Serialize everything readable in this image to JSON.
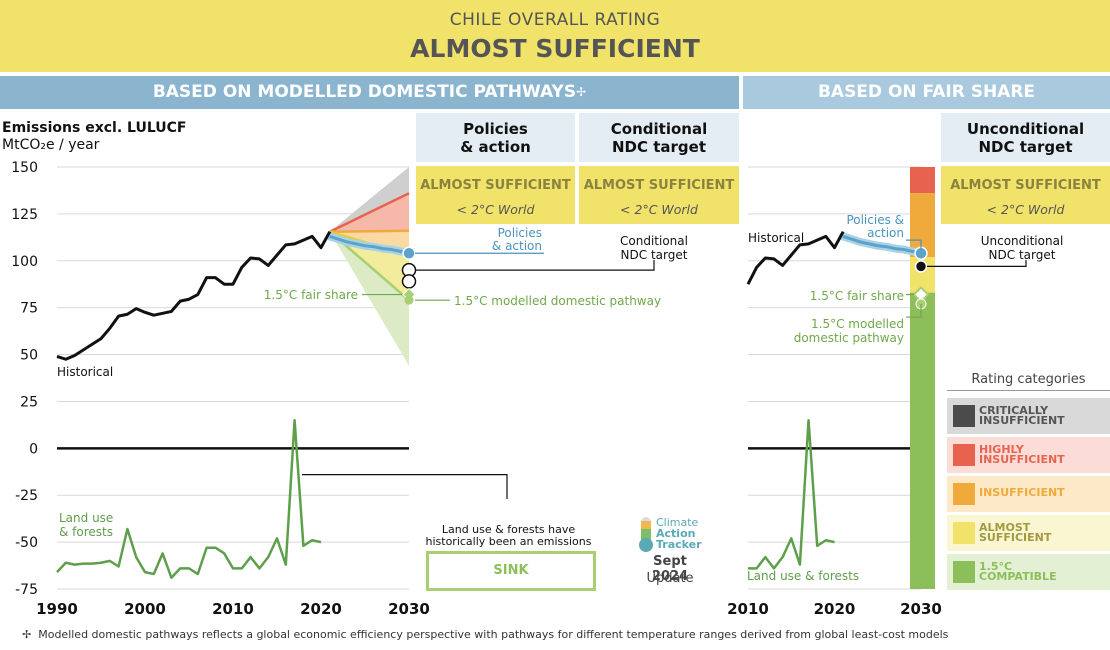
{
  "banner": {
    "subtitle": "CHILE OVERALL RATING",
    "title": "ALMOST SUFFICIENT"
  },
  "headers": {
    "domestic": "BASED ON MODELLED DOMESTIC PATHWAYS",
    "domestic_mark": "✢",
    "fair": "BASED ON FAIR SHARE"
  },
  "columns": {
    "policies": {
      "line1": "Policies",
      "line2": "& action",
      "rating": "ALMOST SUFFICIENT",
      "world": "< 2°C World"
    },
    "conditional": {
      "line1": "Conditional",
      "line2": "NDC target",
      "rating": "ALMOST SUFFICIENT",
      "world": "< 2°C World"
    },
    "unconditional": {
      "line1": "Unconditional",
      "line2": "NDC target",
      "rating": "ALMOST SUFFICIENT",
      "world": "< 2°C World"
    }
  },
  "axis": {
    "title": "Emissions excl. LULUCF",
    "unit": "MtCO₂e / year"
  },
  "annotations": {
    "historical": "Historical",
    "land_use_1": "Land use",
    "land_use_2": "& forests",
    "land_use_fair": "Land use & forests",
    "policies_1": "Policies",
    "policies_2": "& action",
    "policies_fair_1": "Policies &",
    "policies_fair_2": "action",
    "cond_1": "Conditional",
    "cond_2": "NDC target",
    "uncond_1": "Unconditional",
    "uncond_2": "NDC target",
    "fair_share": "1.5°C fair share",
    "modelled": "1.5°C modelled domestic pathway",
    "modelled_fair_1": "1.5°C modelled",
    "modelled_fair_2": "domestic pathway",
    "sink_note_1": "Land use & forests have",
    "sink_note_2": "historically been an emissions",
    "sink": "SINK"
  },
  "brand": {
    "line1": "Climate",
    "line2": "Action",
    "line3": "Tracker",
    "date": "Sept 2024",
    "update": "Update"
  },
  "legend": {
    "title": "Rating categories",
    "items": [
      {
        "l1": "CRITICALLY",
        "l2": "INSUFFICIENT",
        "color": "#4b4b4b",
        "text": "#555555",
        "bg": "#d9d9d9"
      },
      {
        "l1": "HIGHLY",
        "l2": "INSUFFICIENT",
        "color": "#e8634f",
        "text": "#e8634f",
        "bg": "#fbdcd6"
      },
      {
        "l1": "INSUFFICIENT",
        "l2": "",
        "color": "#f0a93b",
        "text": "#f0a93b",
        "bg": "#fde9c7"
      },
      {
        "l1": "ALMOST",
        "l2": "SUFFICIENT",
        "color": "#f1e36a",
        "text": "#a39a40",
        "bg": "#fbf6d2"
      },
      {
        "l1": "1.5°C",
        "l2": "COMPATIBLE",
        "color": "#8cbf5a",
        "text": "#8cbf5a",
        "bg": "#e3f0d4"
      }
    ]
  },
  "footnote": {
    "mark": "✢",
    "text": "Modelled domestic pathways reflects a global economic efficiency perspective with pathways for different temperature ranges derived from global least-cost models"
  },
  "chart_data": {
    "type": "line",
    "ylim": [
      -75,
      150
    ],
    "yticks": [
      "150",
      "125",
      "100",
      "75",
      "50",
      "25",
      "0",
      "-25",
      "-50",
      "-75"
    ],
    "xticks_main": [
      "1990",
      "2000",
      "2010",
      "2020",
      "2030"
    ],
    "xticks_fair": [
      "2010",
      "2020",
      "2030"
    ],
    "colors": {
      "historical": "#111111",
      "land_use": "#5e9f4b",
      "policies": "#5ba3c9",
      "fair": "#a8cf72"
    },
    "historical": {
      "x": [
        1990,
        1991,
        1992,
        1993,
        1994,
        1995,
        1996,
        1997,
        1998,
        1999,
        2000,
        2001,
        2002,
        2003,
        2004,
        2005,
        2006,
        2007,
        2008,
        2009,
        2010,
        2011,
        2012,
        2013,
        2014,
        2015,
        2016,
        2017,
        2018,
        2019,
        2020,
        2021
      ],
      "y": [
        49,
        47.5,
        49.5,
        52.5,
        55.5,
        58.5,
        64,
        70.5,
        71.5,
        74.5,
        72.5,
        71,
        72,
        73,
        78.5,
        79.5,
        82,
        91,
        91,
        87.5,
        87.5,
        96.5,
        101.5,
        101,
        97.5,
        103,
        108.5,
        109,
        111,
        113,
        107,
        115.5
      ]
    },
    "land_use": {
      "x": [
        1990,
        1991,
        1992,
        1993,
        1994,
        1995,
        1996,
        1997,
        1998,
        1999,
        2000,
        2001,
        2002,
        2003,
        2004,
        2005,
        2006,
        2007,
        2008,
        2009,
        2010,
        2011,
        2012,
        2013,
        2014,
        2015,
        2016,
        2017,
        2018,
        2019,
        2020
      ],
      "y": [
        -66,
        -61,
        -62,
        -61.5,
        -61.5,
        -61,
        -60,
        -63,
        -43,
        -58,
        -66,
        -67,
        -56,
        -69,
        -64,
        -64,
        -67,
        -53,
        -53,
        -56,
        -64,
        -64,
        -58,
        -64,
        -58,
        -48,
        -62,
        15,
        -52,
        -49,
        -50
      ]
    },
    "policies_action": {
      "x": [
        2021,
        2022,
        2023,
        2024,
        2025,
        2026,
        2027,
        2028,
        2029,
        2030
      ],
      "y": [
        113,
        111.5,
        110,
        109,
        108,
        107.5,
        106.5,
        106,
        105,
        104
      ]
    },
    "conditional_ndc_2030": 89,
    "unconditional_ndc_2030": 95,
    "fair_share_2030": 82,
    "modelled_pathway_2030": 79,
    "fair_share_bands_2030": [
      {
        "category": "CRITICALLY INSUFFICIENT",
        "from": 150,
        "to": 150
      },
      {
        "category": "HIGHLY INSUFFICIENT",
        "from": 150,
        "to": 136
      },
      {
        "category": "INSUFFICIENT",
        "from": 136,
        "to": 102
      },
      {
        "category": "ALMOST SUFFICIENT",
        "from": 102,
        "to": 83
      },
      {
        "category": "1.5°C COMPATIBLE",
        "from": 83,
        "to": -75
      }
    ]
  }
}
